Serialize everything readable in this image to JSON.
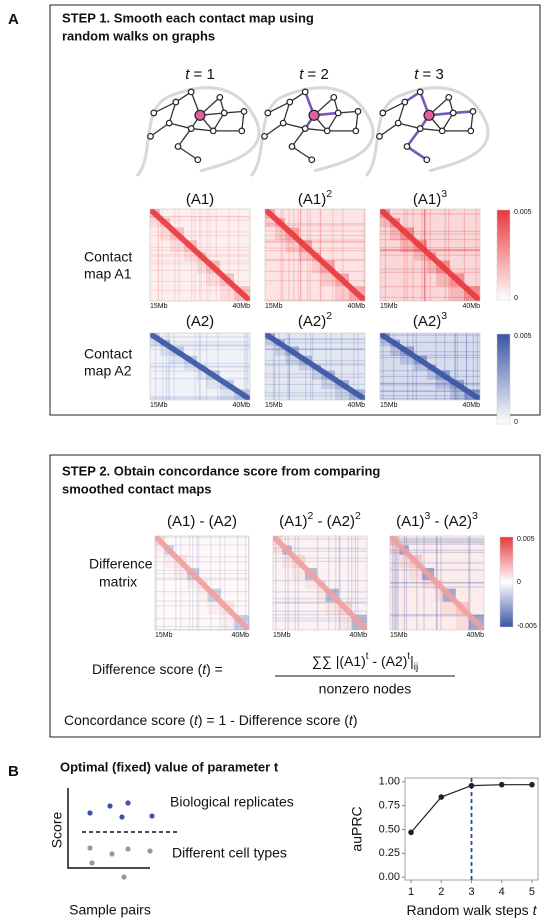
{
  "panel_a": {
    "label": "A",
    "step1": {
      "title_lines": [
        "STEP 1. Smooth each contact map using",
        "random walks on graphs"
      ],
      "steps": [
        [
          {
            "text": "t",
            "style": "italic"
          },
          {
            "text": " = 1"
          }
        ],
        [
          {
            "text": "t",
            "style": "italic"
          },
          {
            "text": " = 2"
          }
        ],
        [
          {
            "text": "t",
            "style": "italic"
          },
          {
            "text": " = 3"
          }
        ]
      ],
      "a1_labels": [
        [
          {
            "text": "(A1)"
          }
        ],
        [
          {
            "text": "(A1)"
          },
          {
            "text": "2",
            "style": "sup"
          }
        ],
        [
          {
            "text": "(A1)"
          },
          {
            "text": "3",
            "style": "sup"
          }
        ]
      ],
      "a2_labels": [
        [
          {
            "text": "(A2)"
          }
        ],
        [
          {
            "text": "(A2)"
          },
          {
            "text": "2",
            "style": "sup"
          }
        ],
        [
          {
            "text": "(A2)"
          },
          {
            "text": "3",
            "style": "sup"
          }
        ]
      ],
      "row_labels": [
        [
          "Contact",
          "map A1"
        ],
        [
          "Contact",
          "map A2"
        ]
      ],
      "axis_start": "15Mb",
      "axis_end": "40Mb",
      "colorbar_a1": {
        "color": "#e8383d",
        "top": "0.005",
        "bottom": "0"
      },
      "colorbar_a2": {
        "color": "#3a54a4",
        "top": "0.005",
        "bottom": "0"
      }
    },
    "step2": {
      "title_lines": [
        "STEP 2. Obtain concordance score from comparing",
        "smoothed contact maps"
      ],
      "diff_labels": [
        [
          {
            "text": "(A1) - (A2)"
          }
        ],
        [
          {
            "text": "(A1)"
          },
          {
            "text": "2",
            "style": "sup"
          },
          {
            "text": " - (A2)"
          },
          {
            "text": "2",
            "style": "sup"
          }
        ],
        [
          {
            "text": "(A1)"
          },
          {
            "text": "3",
            "style": "sup"
          },
          {
            "text": " - (A2)"
          },
          {
            "text": "3",
            "style": "sup"
          }
        ]
      ],
      "row_label": [
        "Difference",
        "matrix"
      ],
      "colorbar": {
        "top": "0.005",
        "middle": "0",
        "bottom": "-0.005"
      },
      "score_label": [
        {
          "text": "Difference score ("
        },
        {
          "text": "t",
          "style": "italic"
        },
        {
          "text": ") ="
        }
      ],
      "numerator": [
        {
          "text": "∑∑ |(A1)"
        },
        {
          "text": "t",
          "style": "sup"
        },
        {
          "text": " - (A2)"
        },
        {
          "text": "t",
          "style": "sup"
        },
        {
          "text": "|"
        },
        {
          "text": "ij",
          "style": "sub"
        }
      ],
      "denominator": "nonzero nodes",
      "concordance": [
        {
          "text": "Concordance score ("
        },
        {
          "text": "t",
          "style": "italic"
        },
        {
          "text": ") = 1 - Difference score ("
        },
        {
          "text": "t",
          "style": "italic"
        },
        {
          "text": ")"
        }
      ]
    }
  },
  "panel_b": {
    "label": "B",
    "title": "Optimal (fixed) value of parameter t",
    "schematic": {
      "y_label": "Score",
      "x_label": "Sample pairs",
      "upper_label": "Biological replicates",
      "upper_color": "#3a54a4",
      "lower_label": "Different cell types",
      "lower_color": "#999999"
    }
  },
  "chart_data": {
    "type": "line",
    "y_label": "auPRC",
    "x_label": "Random walk steps",
    "x_label_symbol": "t",
    "x": [
      1,
      2,
      3,
      4,
      5
    ],
    "values": [
      0.47,
      0.84,
      0.96,
      0.97,
      0.97
    ],
    "color": "#222222",
    "highlight_x": 3,
    "highlight_color": "#2a4a9a",
    "xlim": [
      0.8,
      5.2
    ],
    "ylim": [
      -0.03,
      1.04
    ],
    "xticks": [
      1,
      2,
      3,
      4,
      5
    ],
    "yticks": [
      {
        "value": 0,
        "label": "0.00"
      },
      {
        "value": 0.25,
        "label": "0.25"
      },
      {
        "value": 0.5,
        "label": "0.50"
      },
      {
        "value": 0.75,
        "label": "0.75"
      },
      {
        "value": 1,
        "label": "1.00"
      }
    ]
  }
}
